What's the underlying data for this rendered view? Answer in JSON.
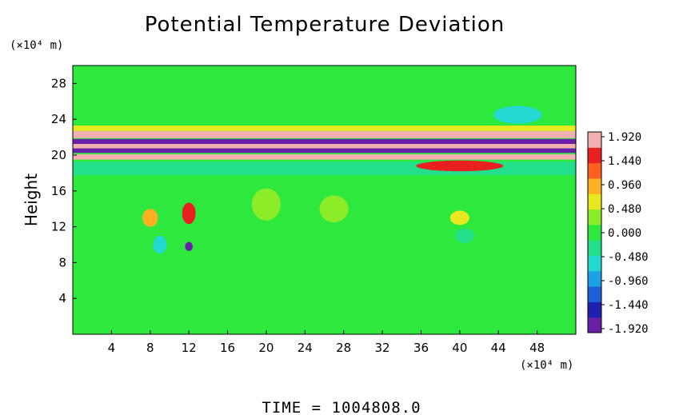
{
  "chart_data": {
    "type": "heatmap",
    "title": "Potential Temperature Deviation",
    "ylabel": "Height",
    "y_unit": "(×10⁴ m)",
    "x_unit": "(×10⁴ m)",
    "footer": "TIME = 1004808.0",
    "xlim": [
      0,
      52
    ],
    "ylim": [
      0,
      30
    ],
    "x_ticks": [
      4,
      8,
      12,
      16,
      20,
      24,
      28,
      32,
      36,
      40,
      44,
      48
    ],
    "y_ticks": [
      4,
      8,
      12,
      16,
      20,
      24,
      28
    ],
    "colorbar": {
      "labels": [
        "1.920",
        "1.440",
        "0.960",
        "0.480",
        "0.000",
        "-0.480",
        "-0.960",
        "-1.440",
        "-1.920"
      ],
      "min": -1.92,
      "max": 1.92,
      "colors": [
        "#6a1fa8",
        "#2020b0",
        "#1f5fd8",
        "#1ea0e6",
        "#22d8d0",
        "#22e08a",
        "#2ee83e",
        "#8cec28",
        "#e8e820",
        "#ffb020",
        "#ff6020",
        "#e82020",
        "#f4b0b0"
      ]
    },
    "background_value": 0.1,
    "features": [
      {
        "shape": "band",
        "x": [
          0,
          52
        ],
        "y": 22.3,
        "thickness": 0.8,
        "value": 1.9
      },
      {
        "shape": "band",
        "x": [
          0,
          52
        ],
        "y": 21.5,
        "thickness": 0.6,
        "value": -1.9
      },
      {
        "shape": "band",
        "x": [
          0,
          52
        ],
        "y": 21.0,
        "thickness": 0.5,
        "value": 1.9
      },
      {
        "shape": "band",
        "x": [
          0,
          52
        ],
        "y": 20.5,
        "thickness": 0.5,
        "value": -1.9
      },
      {
        "shape": "band",
        "x": [
          0,
          52
        ],
        "y": 19.8,
        "thickness": 0.6,
        "value": 1.9
      },
      {
        "shape": "band",
        "x": [
          0,
          52
        ],
        "y": 23.0,
        "thickness": 0.6,
        "value": 0.5
      },
      {
        "shape": "band",
        "x": [
          0,
          52
        ],
        "y": 18.5,
        "thickness": 1.5,
        "value": -0.3
      },
      {
        "shape": "blob",
        "x": 12,
        "y": 13.5,
        "rx": 0.7,
        "ry": 1.2,
        "value": 1.6
      },
      {
        "shape": "blob",
        "x": 12,
        "y": 9.8,
        "rx": 0.4,
        "ry": 0.5,
        "value": -1.8
      },
      {
        "shape": "blob",
        "x": 8,
        "y": 13.0,
        "rx": 0.8,
        "ry": 1.0,
        "value": 0.8
      },
      {
        "shape": "blob",
        "x": 9,
        "y": 10.0,
        "rx": 0.7,
        "ry": 1.0,
        "value": -0.5
      },
      {
        "shape": "blob",
        "x": 40,
        "y": 13.0,
        "rx": 1.0,
        "ry": 0.8,
        "value": 0.6
      },
      {
        "shape": "blob",
        "x": 40.5,
        "y": 11.0,
        "rx": 1.0,
        "ry": 0.8,
        "value": -0.4
      },
      {
        "shape": "blob",
        "x": 40,
        "y": 18.8,
        "rx": 4.5,
        "ry": 0.6,
        "value": 1.5
      },
      {
        "shape": "blob",
        "x": 20,
        "y": 14.5,
        "rx": 1.5,
        "ry": 1.8,
        "value": 0.4
      },
      {
        "shape": "blob",
        "x": 27,
        "y": 14.0,
        "rx": 1.5,
        "ry": 1.5,
        "value": 0.4
      },
      {
        "shape": "blob",
        "x": 46,
        "y": 24.5,
        "rx": 2.5,
        "ry": 1.0,
        "value": -0.6
      }
    ]
  }
}
